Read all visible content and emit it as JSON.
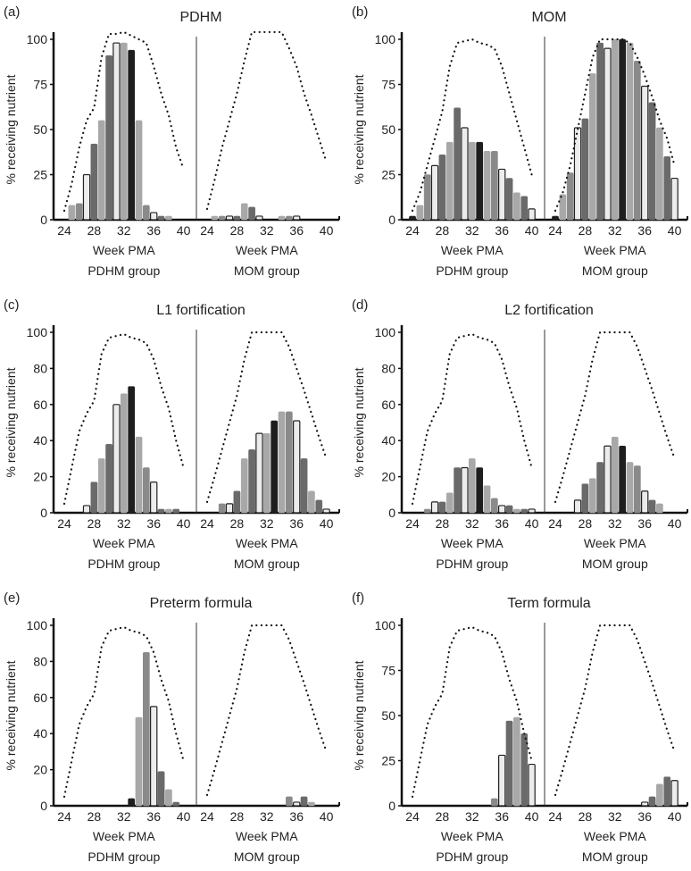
{
  "chart_data": [
    {
      "type": "bar",
      "panel_label": "(a)",
      "title": "PDHM",
      "ylabel": "% receiving nutrient",
      "ylim": [
        0,
        105
      ],
      "yticks": [
        "0",
        "25",
        "50",
        "75",
        "100"
      ],
      "groups": [
        {
          "xlabel": "Week PMA",
          "group_label": "PDHM group",
          "x": [
            24,
            25,
            26,
            27,
            28,
            29,
            30,
            31,
            32,
            33,
            34,
            35,
            36,
            37,
            38,
            39,
            40
          ],
          "values": [
            0,
            8,
            9,
            25,
            42,
            55,
            91,
            98,
            98,
            94,
            55,
            8,
            4,
            2,
            2,
            0,
            0
          ],
          "dotted": [
            5,
            20,
            40,
            55,
            62,
            90,
            103,
            103,
            104,
            102,
            100,
            98,
            85,
            70,
            58,
            40,
            28
          ]
        },
        {
          "xlabel": "Week PMA",
          "group_label": "MOM group",
          "x": [
            24,
            25,
            26,
            27,
            28,
            29,
            30,
            31,
            32,
            33,
            34,
            35,
            36,
            37,
            38,
            39,
            40
          ],
          "values": [
            0,
            2,
            2,
            2,
            2,
            9,
            7,
            2,
            0,
            0,
            2,
            2,
            2,
            0,
            0,
            0,
            0
          ],
          "dotted": [
            6,
            22,
            40,
            55,
            70,
            88,
            104,
            104,
            104,
            104,
            104,
            95,
            85,
            70,
            58,
            45,
            32
          ]
        }
      ]
    },
    {
      "type": "bar",
      "panel_label": "(b)",
      "title": "MOM",
      "ylabel": "% receiving nutrient",
      "ylim": [
        0,
        100
      ],
      "yticks": [
        "0",
        "25",
        "50",
        "75",
        "100"
      ],
      "groups": [
        {
          "xlabel": "Week PMA",
          "group_label": "PDHM group",
          "x": [
            24,
            25,
            26,
            27,
            28,
            29,
            30,
            31,
            32,
            33,
            34,
            35,
            36,
            37,
            38,
            39,
            40
          ],
          "values": [
            2,
            8,
            25,
            30,
            36,
            43,
            62,
            51,
            43,
            43,
            38,
            38,
            28,
            23,
            15,
            13,
            6
          ],
          "dotted": [
            5,
            15,
            30,
            45,
            60,
            85,
            98,
            99,
            100,
            98,
            97,
            95,
            85,
            70,
            55,
            40,
            25
          ]
        },
        {
          "xlabel": "Week PMA",
          "group_label": "MOM group",
          "x": [
            24,
            25,
            26,
            27,
            28,
            29,
            30,
            31,
            32,
            33,
            34,
            35,
            36,
            37,
            38,
            39,
            40
          ],
          "values": [
            2,
            14,
            26,
            51,
            56,
            81,
            98,
            95,
            100,
            100,
            98,
            88,
            74,
            65,
            51,
            35,
            23
          ],
          "dotted": [
            5,
            15,
            30,
            50,
            70,
            90,
            100,
            100,
            100,
            100,
            98,
            90,
            80,
            68,
            55,
            45,
            30
          ]
        }
      ]
    },
    {
      "type": "bar",
      "panel_label": "(c)",
      "title": "L1 fortification",
      "ylabel": "% receiving nutrient",
      "ylim": [
        0,
        100
      ],
      "yticks": [
        "0",
        "20",
        "40",
        "60",
        "80",
        "100"
      ],
      "groups": [
        {
          "xlabel": "Week PMA",
          "group_label": "PDHM group",
          "x": [
            24,
            25,
            26,
            27,
            28,
            29,
            30,
            31,
            32,
            33,
            34,
            35,
            36,
            37,
            38,
            39,
            40
          ],
          "values": [
            0,
            0,
            0,
            4,
            17,
            30,
            38,
            60,
            66,
            70,
            42,
            25,
            17,
            2,
            2,
            2,
            0
          ],
          "dotted": [
            5,
            25,
            45,
            55,
            62,
            88,
            97,
            98,
            99,
            97,
            96,
            94,
            85,
            70,
            58,
            40,
            25
          ]
        },
        {
          "xlabel": "Week PMA",
          "group_label": "MOM group",
          "x": [
            24,
            25,
            26,
            27,
            28,
            29,
            30,
            31,
            32,
            33,
            34,
            35,
            36,
            37,
            38,
            39,
            40
          ],
          "values": [
            0,
            0,
            5,
            5,
            12,
            30,
            35,
            44,
            44,
            51,
            56,
            56,
            51,
            30,
            12,
            7,
            2
          ],
          "dotted": [
            6,
            20,
            35,
            50,
            65,
            85,
            100,
            100,
            100,
            100,
            100,
            92,
            80,
            68,
            55,
            42,
            30
          ]
        }
      ]
    },
    {
      "type": "bar",
      "panel_label": "(d)",
      "title": "L2 fortification",
      "ylabel": "% receiving nutrient",
      "ylim": [
        0,
        100
      ],
      "yticks": [
        "0",
        "20",
        "40",
        "60",
        "80",
        "100"
      ],
      "groups": [
        {
          "xlabel": "Week PMA",
          "group_label": "PDHM group",
          "x": [
            24,
            25,
            26,
            27,
            28,
            29,
            30,
            31,
            32,
            33,
            34,
            35,
            36,
            37,
            38,
            39,
            40
          ],
          "values": [
            0,
            0,
            2,
            6,
            6,
            11,
            25,
            25,
            30,
            25,
            15,
            8,
            4,
            4,
            2,
            2,
            2
          ],
          "dotted": [
            5,
            25,
            45,
            55,
            62,
            88,
            97,
            98,
            99,
            97,
            96,
            94,
            85,
            70,
            58,
            40,
            25
          ]
        },
        {
          "xlabel": "Week PMA",
          "group_label": "MOM group",
          "x": [
            24,
            25,
            26,
            27,
            28,
            29,
            30,
            31,
            32,
            33,
            34,
            35,
            36,
            37,
            38,
            39,
            40
          ],
          "values": [
            0,
            0,
            0,
            7,
            16,
            19,
            28,
            37,
            42,
            37,
            28,
            26,
            12,
            7,
            5,
            0,
            0
          ],
          "dotted": [
            6,
            20,
            35,
            50,
            65,
            85,
            100,
            100,
            100,
            100,
            100,
            92,
            80,
            68,
            55,
            42,
            30
          ]
        }
      ]
    },
    {
      "type": "bar",
      "panel_label": "(e)",
      "title": "Preterm formula",
      "ylabel": "% receiving nutrient",
      "ylim": [
        0,
        100
      ],
      "yticks": [
        "0",
        "20",
        "40",
        "60",
        "80",
        "100"
      ],
      "groups": [
        {
          "xlabel": "Week PMA",
          "group_label": "PDHM group",
          "x": [
            24,
            25,
            26,
            27,
            28,
            29,
            30,
            31,
            32,
            33,
            34,
            35,
            36,
            37,
            38,
            39,
            40
          ],
          "values": [
            0,
            0,
            0,
            0,
            0,
            0,
            0,
            0,
            0,
            4,
            49,
            85,
            55,
            19,
            9,
            2,
            0
          ],
          "dotted": [
            5,
            25,
            45,
            55,
            62,
            88,
            97,
            98,
            99,
            97,
            96,
            94,
            85,
            70,
            58,
            40,
            25
          ]
        },
        {
          "xlabel": "Week PMA",
          "group_label": "MOM group",
          "x": [
            24,
            25,
            26,
            27,
            28,
            29,
            30,
            31,
            32,
            33,
            34,
            35,
            36,
            37,
            38,
            39,
            40
          ],
          "values": [
            0,
            0,
            0,
            0,
            0,
            0,
            0,
            0,
            0,
            0,
            0,
            5,
            2,
            5,
            2,
            0,
            0
          ],
          "dotted": [
            6,
            20,
            35,
            50,
            65,
            85,
            100,
            100,
            100,
            100,
            100,
            92,
            80,
            68,
            55,
            42,
            30
          ]
        }
      ]
    },
    {
      "type": "bar",
      "panel_label": "(f)",
      "title": "Term formula",
      "ylabel": "% receiving nutrient",
      "ylim": [
        0,
        100
      ],
      "yticks": [
        "0",
        "25",
        "50",
        "75",
        "100"
      ],
      "groups": [
        {
          "xlabel": "Week PMA",
          "group_label": "PDHM group",
          "x": [
            24,
            25,
            26,
            27,
            28,
            29,
            30,
            31,
            32,
            33,
            34,
            35,
            36,
            37,
            38,
            39,
            40
          ],
          "values": [
            0,
            0,
            0,
            0,
            0,
            0,
            0,
            0,
            0,
            0,
            0,
            4,
            28,
            47,
            49,
            40,
            23
          ],
          "dotted": [
            5,
            25,
            45,
            55,
            62,
            88,
            97,
            98,
            99,
            97,
            96,
            94,
            85,
            70,
            58,
            40,
            25
          ]
        },
        {
          "xlabel": "Week PMA",
          "group_label": "MOM group",
          "x": [
            24,
            25,
            26,
            27,
            28,
            29,
            30,
            31,
            32,
            33,
            34,
            35,
            36,
            37,
            38,
            39,
            40
          ],
          "values": [
            0,
            0,
            0,
            0,
            0,
            0,
            0,
            0,
            0,
            0,
            0,
            0,
            2,
            5,
            12,
            16,
            14
          ],
          "dotted": [
            6,
            20,
            35,
            50,
            65,
            85,
            100,
            100,
            100,
            100,
            100,
            92,
            80,
            68,
            55,
            42,
            30
          ]
        }
      ]
    }
  ],
  "xticks": [
    "24",
    "28",
    "32",
    "36",
    "40"
  ],
  "bar_colors_by_week": {
    "24": "#1e1e1e",
    "25": "#a8a8a8",
    "26": "#8a8a8a",
    "27": "#ececec",
    "28": "#6a6a6a",
    "29": "#a8a8a8",
    "30": "#6a6a6a",
    "31": "#ececec",
    "32": "#a8a8a8",
    "33": "#1e1e1e",
    "34": "#a8a8a8",
    "35": "#8a8a8a",
    "36": "#ececec",
    "37": "#6a6a6a",
    "38": "#a8a8a8",
    "39": "#6a6a6a",
    "40": "#ececec"
  }
}
